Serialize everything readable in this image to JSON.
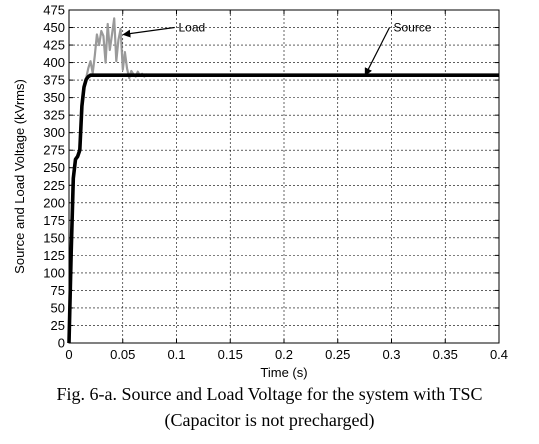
{
  "chart_data": {
    "type": "line",
    "xlabel": "Time (s)",
    "ylabel": "Source and Load Voltage (kVrms)",
    "xlim": [
      0,
      0.4
    ],
    "ylim": [
      0,
      475
    ],
    "x_ticks": [
      "0",
      "0.05",
      "0.1",
      "0.15",
      "0.2",
      "0.25",
      "0.3",
      "0.35",
      "0.4"
    ],
    "y_ticks": [
      "0",
      "25",
      "50",
      "75",
      "100",
      "125",
      "150",
      "175",
      "200",
      "225",
      "250",
      "275",
      "300",
      "325",
      "350",
      "375",
      "400",
      "425",
      "450",
      "475"
    ],
    "grid": true,
    "series": [
      {
        "name": "Load",
        "color": "#9a9a9a",
        "x": [
          0,
          0.002,
          0.004,
          0.006,
          0.008,
          0.01,
          0.012,
          0.014,
          0.016,
          0.018,
          0.02,
          0.022,
          0.024,
          0.026,
          0.028,
          0.03,
          0.032,
          0.034,
          0.036,
          0.038,
          0.04,
          0.042,
          0.044,
          0.046,
          0.048,
          0.05,
          0.052,
          0.054,
          0.056,
          0.058,
          0.06,
          0.062,
          0.064,
          0.066,
          0.068,
          0.07,
          0.072,
          0.075,
          0.08,
          0.09,
          0.1,
          0.2,
          0.3,
          0.4
        ],
        "y": [
          0,
          120,
          230,
          262,
          265,
          278,
          345,
          368,
          378,
          392,
          402,
          385,
          410,
          440,
          425,
          445,
          438,
          400,
          455,
          418,
          440,
          463,
          402,
          432,
          448,
          390,
          415,
          392,
          378,
          388,
          383,
          380,
          387,
          381,
          384,
          380,
          383,
          381,
          382,
          381,
          382,
          382,
          382,
          382
        ]
      },
      {
        "name": "Source",
        "color": "#000000",
        "x": [
          0,
          0.002,
          0.004,
          0.006,
          0.008,
          0.01,
          0.012,
          0.014,
          0.016,
          0.018,
          0.02,
          0.022,
          0.024,
          0.026,
          0.03,
          0.1,
          0.2,
          0.3,
          0.4
        ],
        "y": [
          0,
          130,
          235,
          262,
          266,
          275,
          338,
          365,
          376,
          380,
          382,
          382,
          382,
          382,
          382,
          382,
          382,
          382,
          382
        ]
      }
    ],
    "annotations": [
      {
        "text": "Load",
        "series": "Load",
        "at_x": 0.045,
        "at_y": 440,
        "text_x": 0.1,
        "text_y": 450
      },
      {
        "text": "Source",
        "series": "Source",
        "at_x": 0.27,
        "at_y": 382,
        "text_x": 0.3,
        "text_y": 450
      }
    ]
  },
  "caption": {
    "line1": "Fig. 6-a. Source and Load Voltage for the system with TSC",
    "line2": "(Capacitor is not precharged)"
  }
}
